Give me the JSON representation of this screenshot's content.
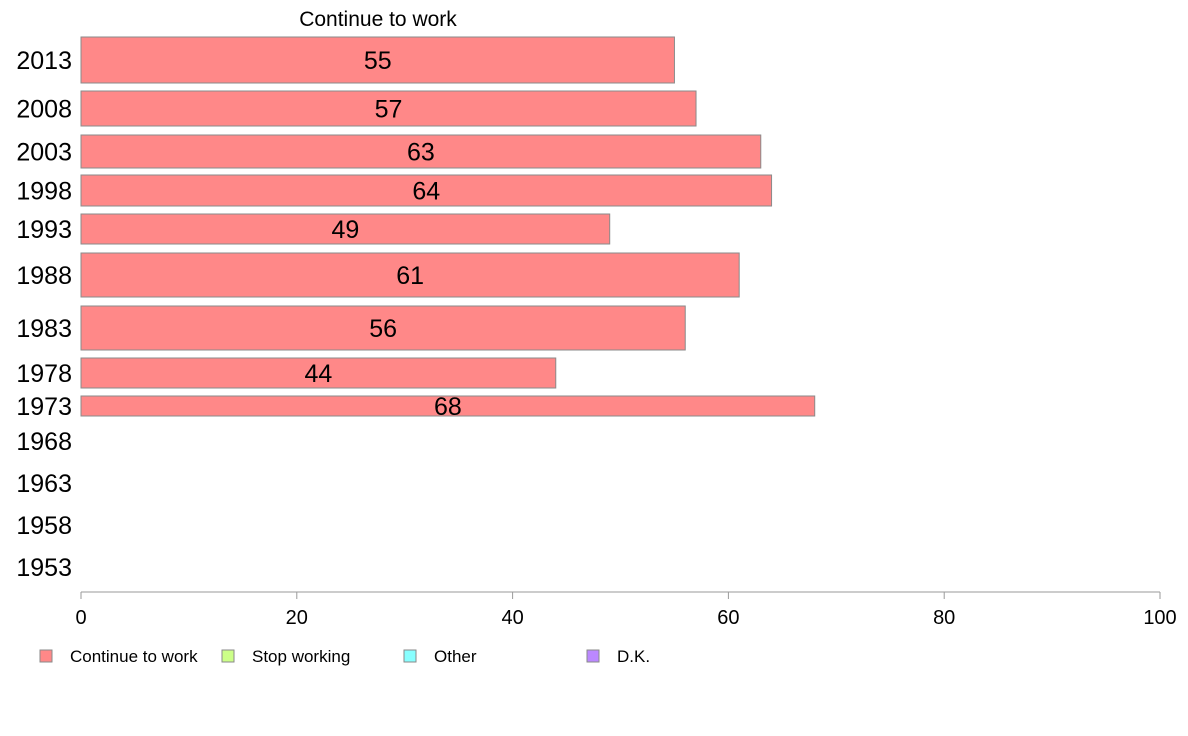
{
  "chart_data": {
    "type": "bar",
    "orientation": "horizontal",
    "title": "Continue to work",
    "categories": [
      "2013",
      "2008",
      "2003",
      "1998",
      "1993",
      "1988",
      "1983",
      "1978",
      "1973",
      "1968",
      "1963",
      "1958",
      "1953"
    ],
    "series": [
      {
        "name": "Continue to work",
        "color": "#ff8888",
        "values": [
          55,
          57,
          63,
          64,
          49,
          61,
          56,
          44,
          68,
          null,
          null,
          null,
          null
        ]
      },
      {
        "name": "Stop working",
        "color": "#ccff88",
        "values": [
          null,
          null,
          null,
          null,
          null,
          null,
          null,
          null,
          null,
          null,
          null,
          null,
          null
        ]
      },
      {
        "name": "Other",
        "color": "#88ffff",
        "values": [
          null,
          null,
          null,
          null,
          null,
          null,
          null,
          null,
          null,
          null,
          null,
          null,
          null
        ]
      },
      {
        "name": "D.K.",
        "color": "#bb88ff",
        "values": [
          null,
          null,
          null,
          null,
          null,
          null,
          null,
          null,
          null,
          null,
          null,
          null,
          null
        ]
      }
    ],
    "xlim": [
      0,
      100
    ],
    "xticks": [
      "0",
      "20",
      "40",
      "60",
      "80",
      "100"
    ],
    "grid": false,
    "legend_position": "bottom-left"
  }
}
